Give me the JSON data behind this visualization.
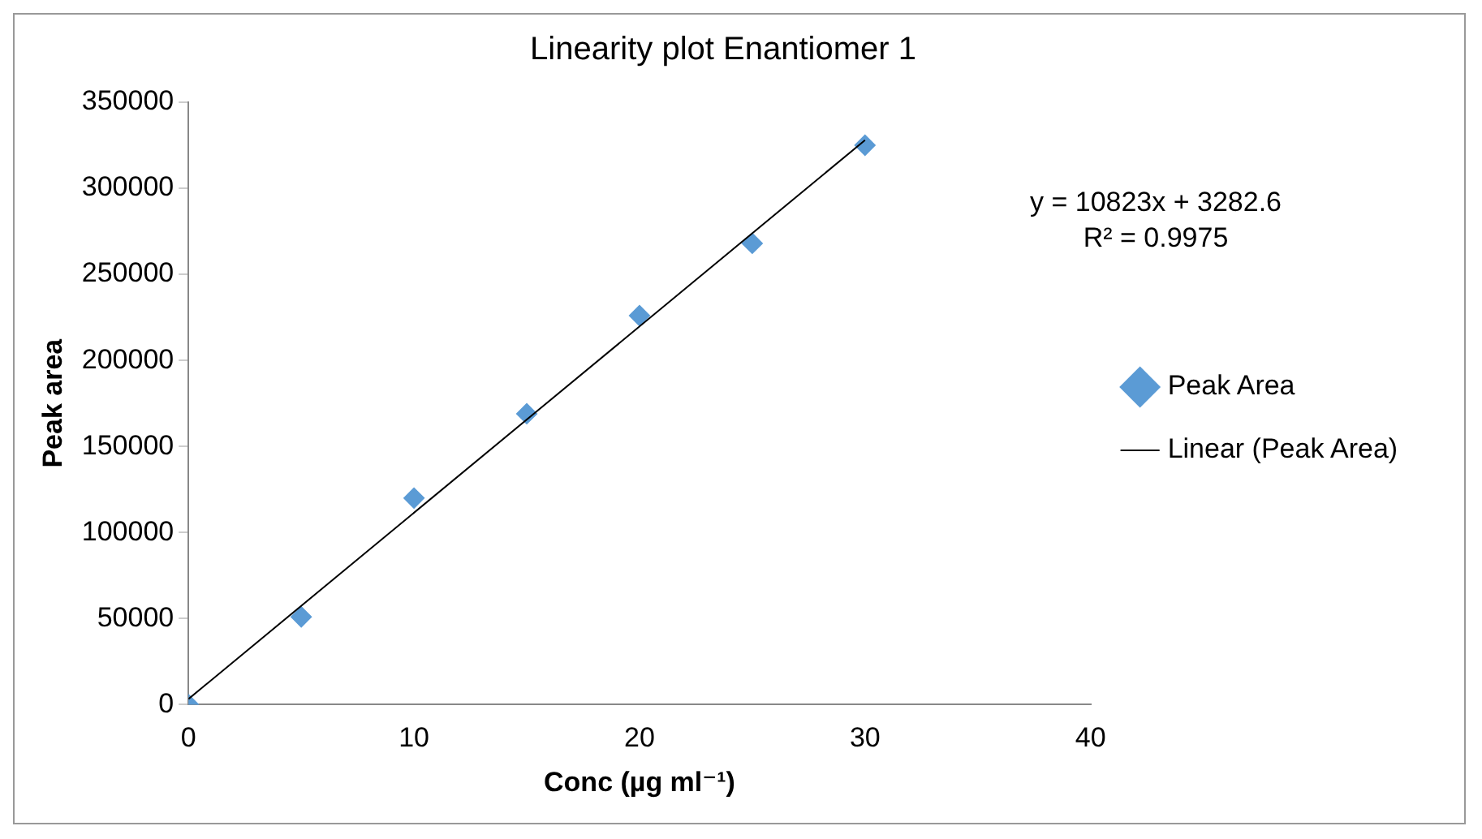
{
  "chart_data": {
    "type": "scatter",
    "title": "Linearity plot Enantiomer 1",
    "xlabel": "Conc (µg ml⁻¹)",
    "ylabel": "Peak area",
    "x": [
      0,
      5,
      10,
      15,
      20,
      25,
      30
    ],
    "series": [
      {
        "name": "Peak Area",
        "color": "#5b9bd5",
        "values": [
          0,
          51000,
          120000,
          169000,
          226000,
          268000,
          325000
        ],
        "marker": "diamond"
      },
      {
        "name": "Linear (Peak Area)",
        "type": "line",
        "color": "#000000",
        "x": [
          0,
          30
        ],
        "values": [
          3282.6,
          327972.6
        ],
        "marker": "none",
        "line_style": "solid"
      }
    ],
    "xlim": [
      0,
      40
    ],
    "xticks": [
      0,
      10,
      20,
      30,
      40
    ],
    "ylim": [
      0,
      350000
    ],
    "yticks": [
      0,
      50000,
      100000,
      150000,
      200000,
      250000,
      300000,
      350000
    ],
    "grid": false,
    "legend": "right",
    "annotations": [
      "y = 10823x + 3282.6",
      "R² = 0.9975"
    ]
  }
}
